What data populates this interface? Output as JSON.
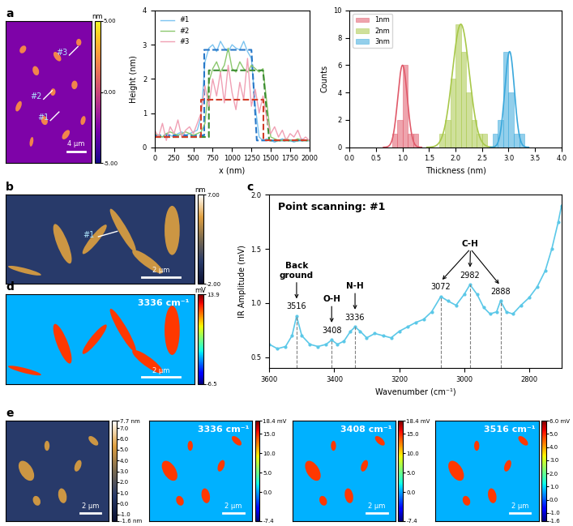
{
  "chart_data": [
    {
      "type": "image",
      "panel": "a",
      "labels": [
        "#3",
        "#2",
        "#1"
      ],
      "scale_bar": "4 μm",
      "colorbar": {
        "unit": "nm",
        "range": [
          -5,
          5
        ],
        "ticks": [
          {
            "value": 5,
            "label": "5.00"
          },
          {
            "value": 0,
            "label": "0.00"
          },
          {
            "value": -5,
            "label": "-5.00"
          }
        ]
      }
    },
    {
      "type": "line",
      "xlabel": "x (nm)",
      "ylabel": "Height (nm)",
      "x": [
        0,
        50,
        100,
        150,
        200,
        250,
        300,
        350,
        400,
        450,
        500,
        550,
        600,
        650,
        700,
        750,
        800,
        850,
        900,
        950,
        1000,
        1050,
        1100,
        1150,
        1200,
        1250,
        1300,
        1350,
        1400,
        1450,
        1500,
        1550,
        1600,
        1650,
        1700,
        1750,
        1800,
        1850,
        1900,
        1950,
        2000
      ],
      "series": [
        {
          "name": "#1",
          "color": "#7cc4f0",
          "line_style": "solid",
          "values": [
            0.3,
            0.35,
            0.3,
            0.4,
            0.35,
            0.3,
            0.4,
            0.45,
            0.35,
            0.4,
            0.45,
            0.5,
            0.9,
            2.5,
            2.9,
            3.0,
            2.8,
            3.1,
            2.9,
            2.8,
            3.0,
            2.9,
            2.85,
            3.1,
            2.8,
            2.6,
            1.2,
            0.3,
            0.2,
            0.25,
            0.2,
            0.15,
            0.2,
            0.25,
            0.2,
            0.2,
            0.15,
            0.2,
            0.25,
            0.2,
            0.2
          ],
          "fit": {
            "color": "#2878c8",
            "line_style": "dashed",
            "x": [
              0,
              640,
              640,
              1250,
              1320,
              2000
            ],
            "values": [
              0.35,
              0.35,
              2.85,
              2.85,
              0.2,
              0.2
            ]
          }
        },
        {
          "name": "#2",
          "color": "#8cc86e",
          "line_style": "solid",
          "values": [
            0.4,
            0.35,
            0.3,
            0.4,
            0.45,
            0.4,
            0.35,
            0.4,
            0.45,
            0.4,
            0.35,
            0.4,
            0.45,
            0.7,
            1.9,
            2.3,
            2.5,
            2.2,
            2.4,
            2.9,
            2.3,
            2.2,
            2.5,
            2.3,
            2.2,
            2.4,
            2.3,
            2.2,
            2.3,
            1.3,
            0.3,
            0.25,
            0.2,
            0.2,
            0.25,
            0.2,
            0.2,
            0.25,
            0.2,
            0.2,
            0.2
          ],
          "fit": {
            "color": "#3c8c32",
            "line_style": "dashed",
            "x": [
              0,
              700,
              700,
              1400,
              1480,
              2000
            ],
            "values": [
              0.3,
              0.3,
              2.25,
              2.25,
              0.2,
              0.2
            ]
          }
        },
        {
          "name": "#3",
          "color": "#f0a0b4",
          "line_style": "solid",
          "values": [
            0.5,
            0.3,
            0.7,
            0.2,
            0.6,
            0.4,
            0.8,
            0.3,
            0.5,
            0.6,
            0.4,
            0.7,
            1.0,
            1.8,
            1.2,
            2.0,
            1.5,
            2.2,
            1.3,
            2.4,
            1.6,
            1.1,
            1.9,
            1.4,
            2.6,
            1.2,
            1.7,
            1.0,
            1.5,
            0.8,
            0.4,
            0.6,
            0.3,
            0.5,
            0.2,
            0.4,
            0.3,
            0.5,
            0.2,
            0.3,
            0.2
          ],
          "fit": {
            "color": "#d23c28",
            "line_style": "dashed",
            "x": [
              0,
              600,
              600,
              1400,
              1400,
              2000
            ],
            "values": [
              0.3,
              0.3,
              1.4,
              1.4,
              0.2,
              0.2
            ]
          }
        }
      ],
      "xlim": [
        0,
        2000
      ],
      "xticks": [
        0,
        250,
        500,
        750,
        1000,
        1250,
        1500,
        1750,
        2000
      ],
      "ylim": [
        0,
        4
      ],
      "yticks": [
        0,
        1,
        2,
        3,
        4
      ],
      "legend": "upper left"
    },
    {
      "type": "histogram",
      "xlabel": "Thickness (nm)",
      "ylabel": "Counts",
      "series": [
        {
          "name": "1nm",
          "color": "#e05a6a",
          "bins": [
            0.8,
            0.9,
            1.0,
            1.1,
            1.2,
            1.3
          ],
          "counts": [
            1,
            2,
            6,
            1,
            1
          ],
          "fit": {
            "mean": 1.0,
            "sigma": 0.09,
            "amplitude": 6
          }
        },
        {
          "name": "2nm",
          "color": "#a8c84a",
          "bins": [
            1.7,
            1.8,
            1.9,
            2.0,
            2.1,
            2.2,
            2.3,
            2.4,
            2.5,
            2.6
          ],
          "counts": [
            1,
            2,
            5,
            9,
            7,
            4,
            2,
            1,
            1
          ],
          "fit": {
            "mean": 2.1,
            "sigma": 0.16,
            "amplitude": 9
          }
        },
        {
          "name": "3nm",
          "color": "#3aa8dc",
          "bins": [
            2.7,
            2.8,
            2.9,
            3.0,
            3.1,
            3.2,
            3.3
          ],
          "counts": [
            1,
            2,
            7,
            4,
            1,
            1
          ],
          "fit": {
            "mean": 3.02,
            "sigma": 0.09,
            "amplitude": 7
          }
        }
      ],
      "xlim": [
        0,
        4
      ],
      "xticks": [
        0.0,
        0.5,
        1.0,
        1.5,
        2.0,
        2.5,
        3.0,
        3.5,
        4.0
      ],
      "ylim": [
        0,
        10
      ],
      "yticks": [
        0,
        2,
        4,
        6,
        8,
        10
      ],
      "legend": "upper left"
    },
    {
      "type": "image",
      "panel": "b",
      "labels": [
        "#1"
      ],
      "scale_bar": "2 μm",
      "colorbar": {
        "unit": "nm",
        "range": [
          -2,
          7
        ],
        "ticks": [
          {
            "value": 7,
            "label": "7.00"
          },
          {
            "value": -2,
            "label": "-2.00"
          }
        ]
      }
    },
    {
      "type": "line",
      "panel": "c",
      "title": "Point scanning: #1",
      "xlabel": "Wavenumber (cm⁻¹)",
      "ylabel": "IR Amplitude (mV)",
      "x": [
        3600,
        3575,
        3550,
        3530,
        3516,
        3500,
        3475,
        3450,
        3425,
        3408,
        3390,
        3370,
        3350,
        3336,
        3320,
        3300,
        3275,
        3250,
        3225,
        3200,
        3175,
        3150,
        3125,
        3100,
        3072,
        3050,
        3025,
        3000,
        2982,
        2960,
        2940,
        2920,
        2900,
        2888,
        2870,
        2850,
        2825,
        2800,
        2775,
        2750,
        2730,
        2710,
        2700
      ],
      "values": [
        0.62,
        0.58,
        0.6,
        0.7,
        0.88,
        0.7,
        0.62,
        0.6,
        0.62,
        0.66,
        0.62,
        0.65,
        0.74,
        0.78,
        0.74,
        0.68,
        0.72,
        0.7,
        0.68,
        0.74,
        0.78,
        0.82,
        0.85,
        0.92,
        1.06,
        1.02,
        0.98,
        1.08,
        1.17,
        1.08,
        0.96,
        0.9,
        0.92,
        1.02,
        0.92,
        0.9,
        0.98,
        1.05,
        1.15,
        1.3,
        1.5,
        1.75,
        1.9
      ],
      "color": "#5bc8e8",
      "marker": "o",
      "annotations": [
        {
          "text": "Back\nground",
          "peaks": [
            3516
          ]
        },
        {
          "text": "O-H",
          "peaks": [
            3408
          ]
        },
        {
          "text": "N-H",
          "peaks": [
            3336
          ]
        },
        {
          "text": "C-H",
          "peaks": [
            3072,
            2982,
            2888
          ]
        }
      ],
      "xlim": [
        3600,
        2700
      ],
      "xticks": [
        3600,
        3400,
        3200,
        3000,
        2800
      ],
      "ylim": [
        0.4,
        2.0
      ],
      "yticks": [
        0.5,
        1.0,
        1.5,
        2.0
      ]
    },
    {
      "type": "image",
      "panel": "d",
      "title": "3336 cm⁻¹",
      "scale_bar": "2 μm",
      "colorbar": {
        "unit": "mV",
        "range": [
          -6.5,
          13.9
        ],
        "ticks": [
          13.9,
          -6.5
        ]
      }
    },
    {
      "type": "image",
      "panel": "e",
      "scale_bar": "2 μm",
      "colorbar": {
        "range": [
          -1.6,
          7.7
        ],
        "ticks": [
          {
            "value": 7.7,
            "label": "7.7 nm"
          },
          7.0,
          6.0,
          5.0,
          4.0,
          3.0,
          2.0,
          1.0,
          0.0,
          -1.0,
          {
            "value": -1.6,
            "label": "-1.6 nm"
          }
        ]
      }
    },
    {
      "type": "image",
      "title": "3336 cm⁻¹",
      "scale_bar": "2 μm",
      "colorbar": {
        "range": [
          -7.4,
          18.4
        ],
        "ticks": [
          {
            "value": 18.4,
            "label": "18.4 mV"
          },
          15.0,
          10.0,
          5.0,
          0.0,
          -7.4
        ]
      }
    },
    {
      "type": "image",
      "title": "3408 cm⁻¹",
      "scale_bar": "2 μm",
      "colorbar": {
        "range": [
          -7.4,
          18.4
        ],
        "ticks": [
          {
            "value": 18.4,
            "label": "18.4 mV"
          },
          15.0,
          10.0,
          5.0,
          0.0,
          -7.4
        ]
      }
    },
    {
      "type": "image",
      "title": "3516 cm⁻¹",
      "scale_bar": "2 μm",
      "colorbar": {
        "range": [
          -1.6,
          6.0
        ],
        "ticks": [
          {
            "value": 6.0,
            "label": "6.0 mV"
          },
          5.0,
          4.0,
          3.0,
          2.0,
          1.0,
          0.0,
          -1.0,
          -1.6
        ]
      }
    }
  ]
}
